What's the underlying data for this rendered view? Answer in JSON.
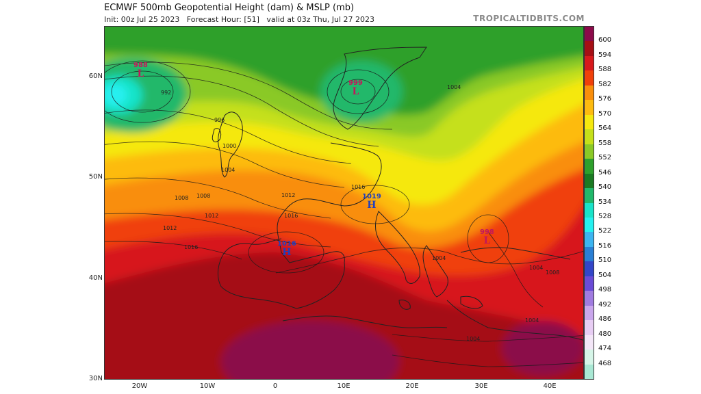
{
  "header": {
    "title": "ECMWF 500mb Geopotential Height (dam) & MSLP (mb)",
    "subtitle": "Init: 00z Jul 25 2023   Forecast Hour: [51]   valid at 03z Thu, Jul 27 2023",
    "brand": "TROPICALTIDBITS.COM"
  },
  "axes": {
    "lat_labels": [
      "60N",
      "50N",
      "40N",
      "30N"
    ],
    "lon_labels": [
      "20W",
      "10W",
      "0",
      "10E",
      "20E",
      "30E",
      "40E"
    ]
  },
  "colorbar": {
    "levels": [
      "600",
      "594",
      "588",
      "582",
      "576",
      "570",
      "564",
      "558",
      "552",
      "546",
      "540",
      "534",
      "528",
      "522",
      "516",
      "510",
      "504",
      "498",
      "492",
      "486",
      "480",
      "474",
      "468"
    ],
    "colors": [
      "#8b0a4a",
      "#a50f15",
      "#d7191c",
      "#f0400a",
      "#f98e0b",
      "#fdbb10",
      "#f5e80f",
      "#c5e01a",
      "#8ac926",
      "#2ea02c",
      "#1a7a22",
      "#20b86a",
      "#18e3c9",
      "#25f0f0",
      "#3cb4f0",
      "#2a7fd4",
      "#3346c8",
      "#6a4bd6",
      "#a07be0",
      "#c9a6ec",
      "#e7cdf3",
      "#f3e6f7",
      "#d6f5e8",
      "#a9e8d4"
    ]
  },
  "pressure_systems": [
    {
      "type": "L",
      "value": "988",
      "color": "#c2185b"
    },
    {
      "type": "L",
      "value": "999",
      "color": "#c2185b"
    },
    {
      "type": "H",
      "value": "1019",
      "color": "#1f3fbf"
    },
    {
      "type": "H",
      "value": "1016",
      "color": "#1f3fbf"
    },
    {
      "type": "L",
      "value": "998",
      "color": "#c2185b"
    }
  ],
  "isobar_labels": [
    "992",
    "996",
    "1000",
    "1004",
    "1008",
    "1012",
    "1016",
    "1016",
    "1016",
    "1012",
    "1004",
    "1004",
    "1004",
    "1008",
    "1004",
    "1008",
    "1012",
    "1004"
  ]
}
